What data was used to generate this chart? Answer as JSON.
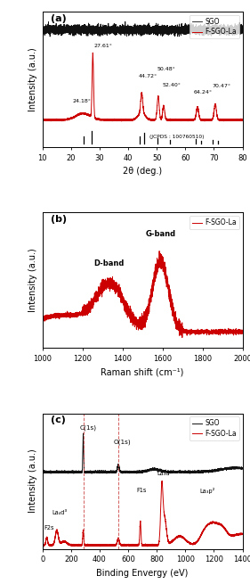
{
  "panel_a": {
    "title": "(a)",
    "xlabel": "2θ (deg.)",
    "ylabel": "Intensity (a.u.)",
    "xlim": [
      10,
      80
    ],
    "sgo_color": "#111111",
    "fsgo_color": "#cc0000",
    "legend": [
      "SGO",
      "F-SGO-La"
    ],
    "jcpds_label": "(JCPDS : 100760510)",
    "jcpds_sticks": [
      24.5,
      27.3,
      44.0,
      45.5,
      50.2,
      54.5,
      63.5,
      65.5,
      69.5,
      71.5
    ],
    "jcpds_heights": [
      0.055,
      0.1,
      0.055,
      0.09,
      0.04,
      0.03,
      0.035,
      0.025,
      0.03,
      0.025
    ]
  },
  "panel_b": {
    "title": "(b)",
    "xlabel": "Raman shift (cm⁻¹)",
    "ylabel": "Intensity (a.u.)",
    "xlim": [
      1000,
      2000
    ],
    "fsgo_color": "#cc0000",
    "legend": [
      "F-SGO-La"
    ],
    "d_band_label": "D-band",
    "g_band_label": "G-band"
  },
  "panel_c": {
    "title": "(c)",
    "xlabel": "Binding Envergy (eV)",
    "ylabel": "Intensity (a.u.)",
    "xlim": [
      0,
      1400
    ],
    "sgo_color": "#111111",
    "fsgo_color": "#cc0000",
    "legend": [
      "SGO",
      "F-SGO-La"
    ],
    "dashed_lines": [
      285,
      531
    ],
    "dashed_color": "#cc4444"
  }
}
